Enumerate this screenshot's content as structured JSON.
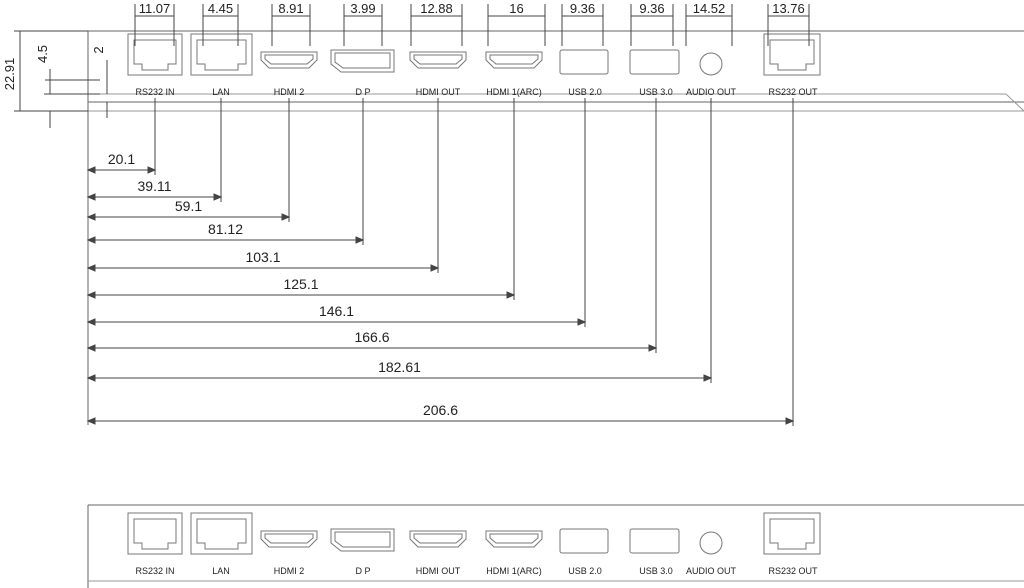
{
  "ports": [
    {
      "label": "RS232 IN",
      "icon": "rj45-port-icon",
      "width_dim": "11.07",
      "offset_dim": "20.1"
    },
    {
      "label": "LAN",
      "icon": "rj45-port-icon",
      "width_dim": "4.45",
      "offset_dim": "39.11"
    },
    {
      "label": "HDMI 2",
      "icon": "hdmi-port-icon",
      "width_dim": "8.91",
      "offset_dim": "59.1"
    },
    {
      "label": "D P",
      "icon": "displayport-icon",
      "width_dim": "3.99",
      "offset_dim": "81.12"
    },
    {
      "label": "HDMI OUT",
      "icon": "hdmi-port-icon",
      "width_dim": "12.88",
      "offset_dim": "103.1"
    },
    {
      "label": "HDMI 1(ARC)",
      "icon": "hdmi-port-icon",
      "width_dim": "16",
      "offset_dim": "125.1"
    },
    {
      "label": "USB 2.0",
      "icon": "usb-port-icon",
      "width_dim": "9.36",
      "offset_dim": "146.1"
    },
    {
      "label": "USB 3.0",
      "icon": "usb-port-icon",
      "width_dim": "9.36",
      "offset_dim": "166.6"
    },
    {
      "label": "AUDIO OUT",
      "icon": "audio-jack-icon",
      "width_dim": "14.52",
      "offset_dim": "182.61"
    },
    {
      "label": "RS232 OUT",
      "icon": "rj45-port-icon",
      "width_dim": "13.76",
      "offset_dim": "206.6"
    }
  ],
  "vertical_dims": {
    "total_height": "22.91",
    "port_height": "4.5",
    "top_offset": "2"
  }
}
